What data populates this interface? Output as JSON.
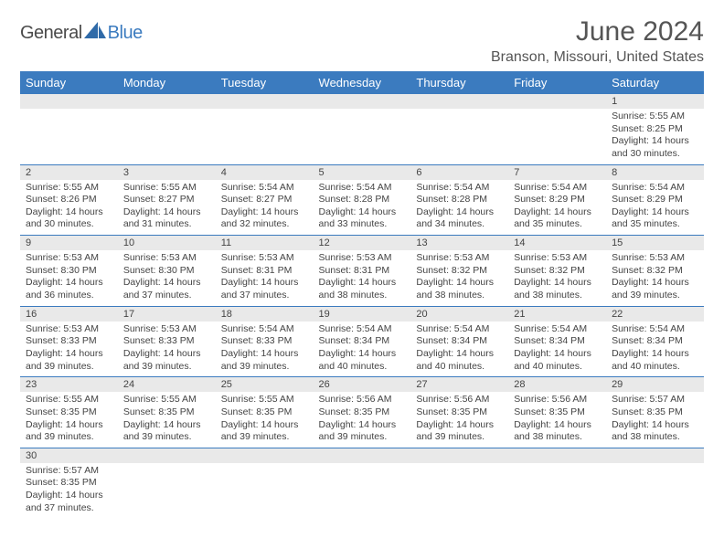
{
  "logo": {
    "part1": "General",
    "part2": "Blue"
  },
  "title": "June 2024",
  "location": "Branson, Missouri, United States",
  "colors": {
    "header_bg": "#3b7bbf",
    "header_text": "#ffffff",
    "daynum_bg": "#e9e9e9",
    "text": "#444444",
    "border": "#3b7bbf",
    "logo_gray": "#4a4a4a",
    "logo_blue": "#3b7bbf"
  },
  "weekdays": [
    "Sunday",
    "Monday",
    "Tuesday",
    "Wednesday",
    "Thursday",
    "Friday",
    "Saturday"
  ],
  "labels": {
    "sunrise": "Sunrise:",
    "sunset": "Sunset:",
    "daylight": "Daylight:"
  },
  "weeks": [
    [
      null,
      null,
      null,
      null,
      null,
      null,
      {
        "n": "1",
        "sr": "5:55 AM",
        "ss": "8:25 PM",
        "dl": "14 hours and 30 minutes."
      }
    ],
    [
      {
        "n": "2",
        "sr": "5:55 AM",
        "ss": "8:26 PM",
        "dl": "14 hours and 30 minutes."
      },
      {
        "n": "3",
        "sr": "5:55 AM",
        "ss": "8:27 PM",
        "dl": "14 hours and 31 minutes."
      },
      {
        "n": "4",
        "sr": "5:54 AM",
        "ss": "8:27 PM",
        "dl": "14 hours and 32 minutes."
      },
      {
        "n": "5",
        "sr": "5:54 AM",
        "ss": "8:28 PM",
        "dl": "14 hours and 33 minutes."
      },
      {
        "n": "6",
        "sr": "5:54 AM",
        "ss": "8:28 PM",
        "dl": "14 hours and 34 minutes."
      },
      {
        "n": "7",
        "sr": "5:54 AM",
        "ss": "8:29 PM",
        "dl": "14 hours and 35 minutes."
      },
      {
        "n": "8",
        "sr": "5:54 AM",
        "ss": "8:29 PM",
        "dl": "14 hours and 35 minutes."
      }
    ],
    [
      {
        "n": "9",
        "sr": "5:53 AM",
        "ss": "8:30 PM",
        "dl": "14 hours and 36 minutes."
      },
      {
        "n": "10",
        "sr": "5:53 AM",
        "ss": "8:30 PM",
        "dl": "14 hours and 37 minutes."
      },
      {
        "n": "11",
        "sr": "5:53 AM",
        "ss": "8:31 PM",
        "dl": "14 hours and 37 minutes."
      },
      {
        "n": "12",
        "sr": "5:53 AM",
        "ss": "8:31 PM",
        "dl": "14 hours and 38 minutes."
      },
      {
        "n": "13",
        "sr": "5:53 AM",
        "ss": "8:32 PM",
        "dl": "14 hours and 38 minutes."
      },
      {
        "n": "14",
        "sr": "5:53 AM",
        "ss": "8:32 PM",
        "dl": "14 hours and 38 minutes."
      },
      {
        "n": "15",
        "sr": "5:53 AM",
        "ss": "8:32 PM",
        "dl": "14 hours and 39 minutes."
      }
    ],
    [
      {
        "n": "16",
        "sr": "5:53 AM",
        "ss": "8:33 PM",
        "dl": "14 hours and 39 minutes."
      },
      {
        "n": "17",
        "sr": "5:53 AM",
        "ss": "8:33 PM",
        "dl": "14 hours and 39 minutes."
      },
      {
        "n": "18",
        "sr": "5:54 AM",
        "ss": "8:33 PM",
        "dl": "14 hours and 39 minutes."
      },
      {
        "n": "19",
        "sr": "5:54 AM",
        "ss": "8:34 PM",
        "dl": "14 hours and 40 minutes."
      },
      {
        "n": "20",
        "sr": "5:54 AM",
        "ss": "8:34 PM",
        "dl": "14 hours and 40 minutes."
      },
      {
        "n": "21",
        "sr": "5:54 AM",
        "ss": "8:34 PM",
        "dl": "14 hours and 40 minutes."
      },
      {
        "n": "22",
        "sr": "5:54 AM",
        "ss": "8:34 PM",
        "dl": "14 hours and 40 minutes."
      }
    ],
    [
      {
        "n": "23",
        "sr": "5:55 AM",
        "ss": "8:35 PM",
        "dl": "14 hours and 39 minutes."
      },
      {
        "n": "24",
        "sr": "5:55 AM",
        "ss": "8:35 PM",
        "dl": "14 hours and 39 minutes."
      },
      {
        "n": "25",
        "sr": "5:55 AM",
        "ss": "8:35 PM",
        "dl": "14 hours and 39 minutes."
      },
      {
        "n": "26",
        "sr": "5:56 AM",
        "ss": "8:35 PM",
        "dl": "14 hours and 39 minutes."
      },
      {
        "n": "27",
        "sr": "5:56 AM",
        "ss": "8:35 PM",
        "dl": "14 hours and 39 minutes."
      },
      {
        "n": "28",
        "sr": "5:56 AM",
        "ss": "8:35 PM",
        "dl": "14 hours and 38 minutes."
      },
      {
        "n": "29",
        "sr": "5:57 AM",
        "ss": "8:35 PM",
        "dl": "14 hours and 38 minutes."
      }
    ],
    [
      {
        "n": "30",
        "sr": "5:57 AM",
        "ss": "8:35 PM",
        "dl": "14 hours and 37 minutes."
      },
      null,
      null,
      null,
      null,
      null,
      null
    ]
  ]
}
